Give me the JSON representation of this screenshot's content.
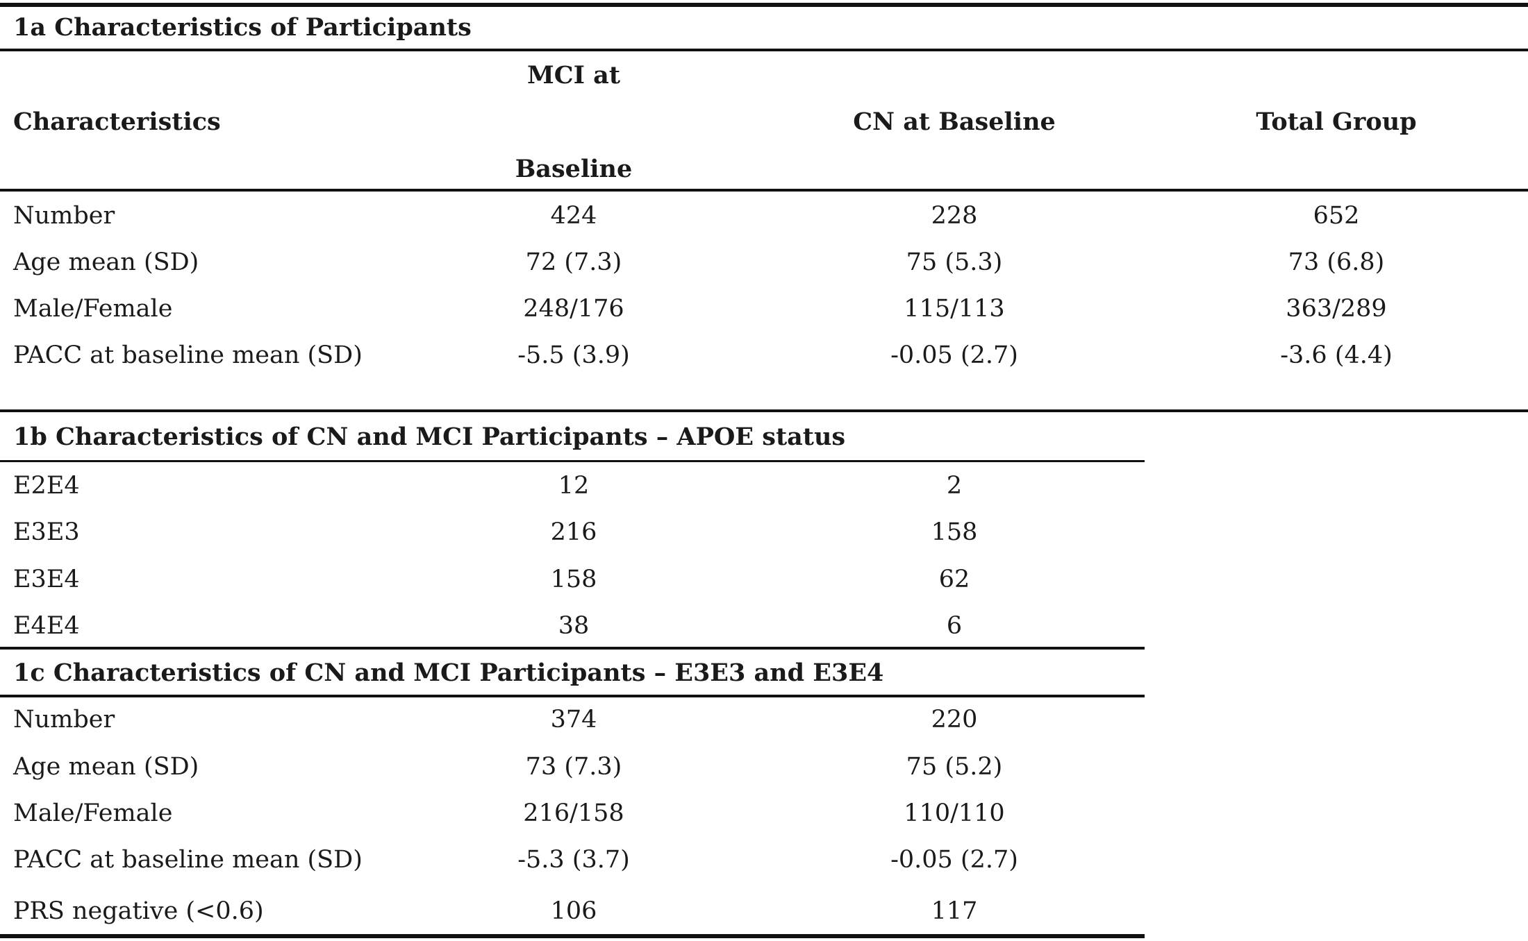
{
  "section_1a": {
    "title": "1a Characteristics of Participants",
    "header": {
      "characteristics": "Characteristics",
      "mci_line1": "MCI at",
      "mci_line2": "Baseline",
      "cn": "CN at Baseline",
      "total": "Total Group"
    },
    "rows": [
      {
        "label": "Number",
        "mci": "424",
        "cn": "228",
        "total": "652"
      },
      {
        "label": "Age mean (SD)",
        "mci": "72 (7.3)",
        "cn": "75 (5.3)",
        "total": "73 (6.8)"
      },
      {
        "label": "Male/Female",
        "mci": "248/176",
        "cn": "115/113",
        "total": "363/289"
      },
      {
        "label": "PACC at baseline mean (SD)",
        "mci": "-5.5 (3.9)",
        "cn": "-0.05 (2.7)",
        "total": "-3.6 (4.4)"
      }
    ]
  },
  "section_1b": {
    "title": "1b Characteristics of CN and MCI Participants – APOE status",
    "rows": [
      {
        "label": "E2E4",
        "mci": "12",
        "cn": "2"
      },
      {
        "label": "E3E3",
        "mci": "216",
        "cn": "158"
      },
      {
        "label": "E3E4",
        "mci": "158",
        "cn": "62"
      },
      {
        "label": "E4E4",
        "mci": "38",
        "cn": "6"
      }
    ]
  },
  "section_1c": {
    "title": "1c Characteristics of CN and MCI Participants – E3E3 and E3E4",
    "rows": [
      {
        "label": "Number",
        "mci": "374",
        "cn": "220"
      },
      {
        "label": "Age mean (SD)",
        "mci": "73 (7.3)",
        "cn": "75 (5.2)"
      },
      {
        "label": "Male/Female",
        "mci": "216/158",
        "cn": "110/110"
      },
      {
        "label": "PACC at baseline mean (SD)",
        "mci": "-5.3 (3.7)",
        "cn": "-0.05 (2.7)"
      },
      {
        "label": "PRS negative (<0.6)",
        "mci": "106",
        "cn": "117"
      }
    ]
  }
}
